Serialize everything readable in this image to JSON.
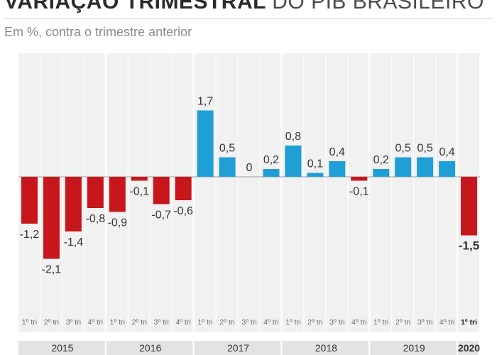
{
  "header": {
    "title_bold": "VARIAÇÃO TRIMESTRAL",
    "title_light": "DO PIB BRASILEIRO",
    "subtitle": "Em %, contra o trimestre anterior"
  },
  "colors": {
    "negative": "#c8161d",
    "positive": "#1f9fd6"
  },
  "chart_data": {
    "type": "bar",
    "title": "VARIAÇÃO TRIMESTRAL DO PIB BRASILEIRO",
    "subtitle": "Em %, contra o trimestre anterior",
    "categories": [
      "1º tri",
      "2º tri",
      "3º tri",
      "4º tri",
      "1º tri",
      "2º tri",
      "3º tri",
      "4º tri",
      "1º tri",
      "2º tri",
      "3º tri",
      "4º tri",
      "1º tri",
      "2º tri",
      "3º tri",
      "4º tri",
      "1º tri",
      "2º tri",
      "3º tri",
      "4º tri",
      "1º tri"
    ],
    "years": [
      {
        "label": "2015",
        "quarters": 4
      },
      {
        "label": "2016",
        "quarters": 4
      },
      {
        "label": "2017",
        "quarters": 4
      },
      {
        "label": "2018",
        "quarters": 4
      },
      {
        "label": "2019",
        "quarters": 4
      },
      {
        "label": "2020",
        "quarters": 1
      }
    ],
    "values": [
      -1.2,
      -2.1,
      -1.4,
      -0.8,
      -0.9,
      -0.1,
      -0.7,
      -0.6,
      1.7,
      0.5,
      0,
      0.2,
      0.8,
      0.1,
      0.4,
      -0.1,
      0.2,
      0.5,
      0.5,
      0.4,
      -1.5
    ],
    "value_labels": [
      "-1,2",
      "-2,1",
      "-1,4",
      "-0,8",
      "-0,9",
      "-0,1",
      "-0,7",
      "-0,6",
      "1,7",
      "0,5",
      "0",
      "0,2",
      "0,8",
      "0,1",
      "0,4",
      "-0,1",
      "0,2",
      "0,5",
      "0,5",
      "0,4",
      "-1,5"
    ],
    "highlight_last": true,
    "grid": false,
    "xlabel": "",
    "ylabel": ""
  }
}
